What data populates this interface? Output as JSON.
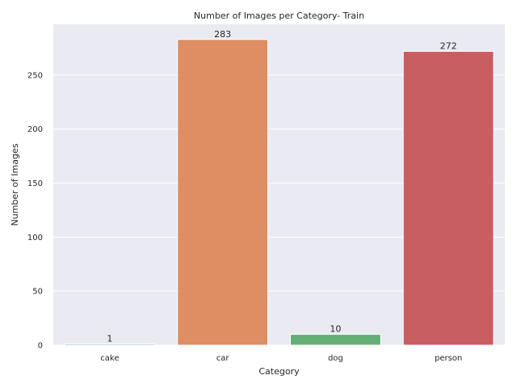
{
  "chart_data": {
    "type": "bar",
    "title": "Number of Images per Category- Train",
    "xlabel": "Category",
    "ylabel": "Number of Images",
    "categories": [
      "cake",
      "car",
      "dog",
      "person"
    ],
    "values": [
      1,
      283,
      10,
      272
    ],
    "data_labels": [
      "1",
      "283",
      "10",
      "272"
    ],
    "colors": [
      "#4c72b0",
      "#dd8452",
      "#55a868",
      "#c44e52"
    ],
    "ylim": [
      0,
      297.1
    ],
    "yticks": [
      0,
      50,
      100,
      150,
      200,
      250
    ],
    "grid": true,
    "background": "#eaeaf2",
    "bar_alpha": 0.9
  }
}
